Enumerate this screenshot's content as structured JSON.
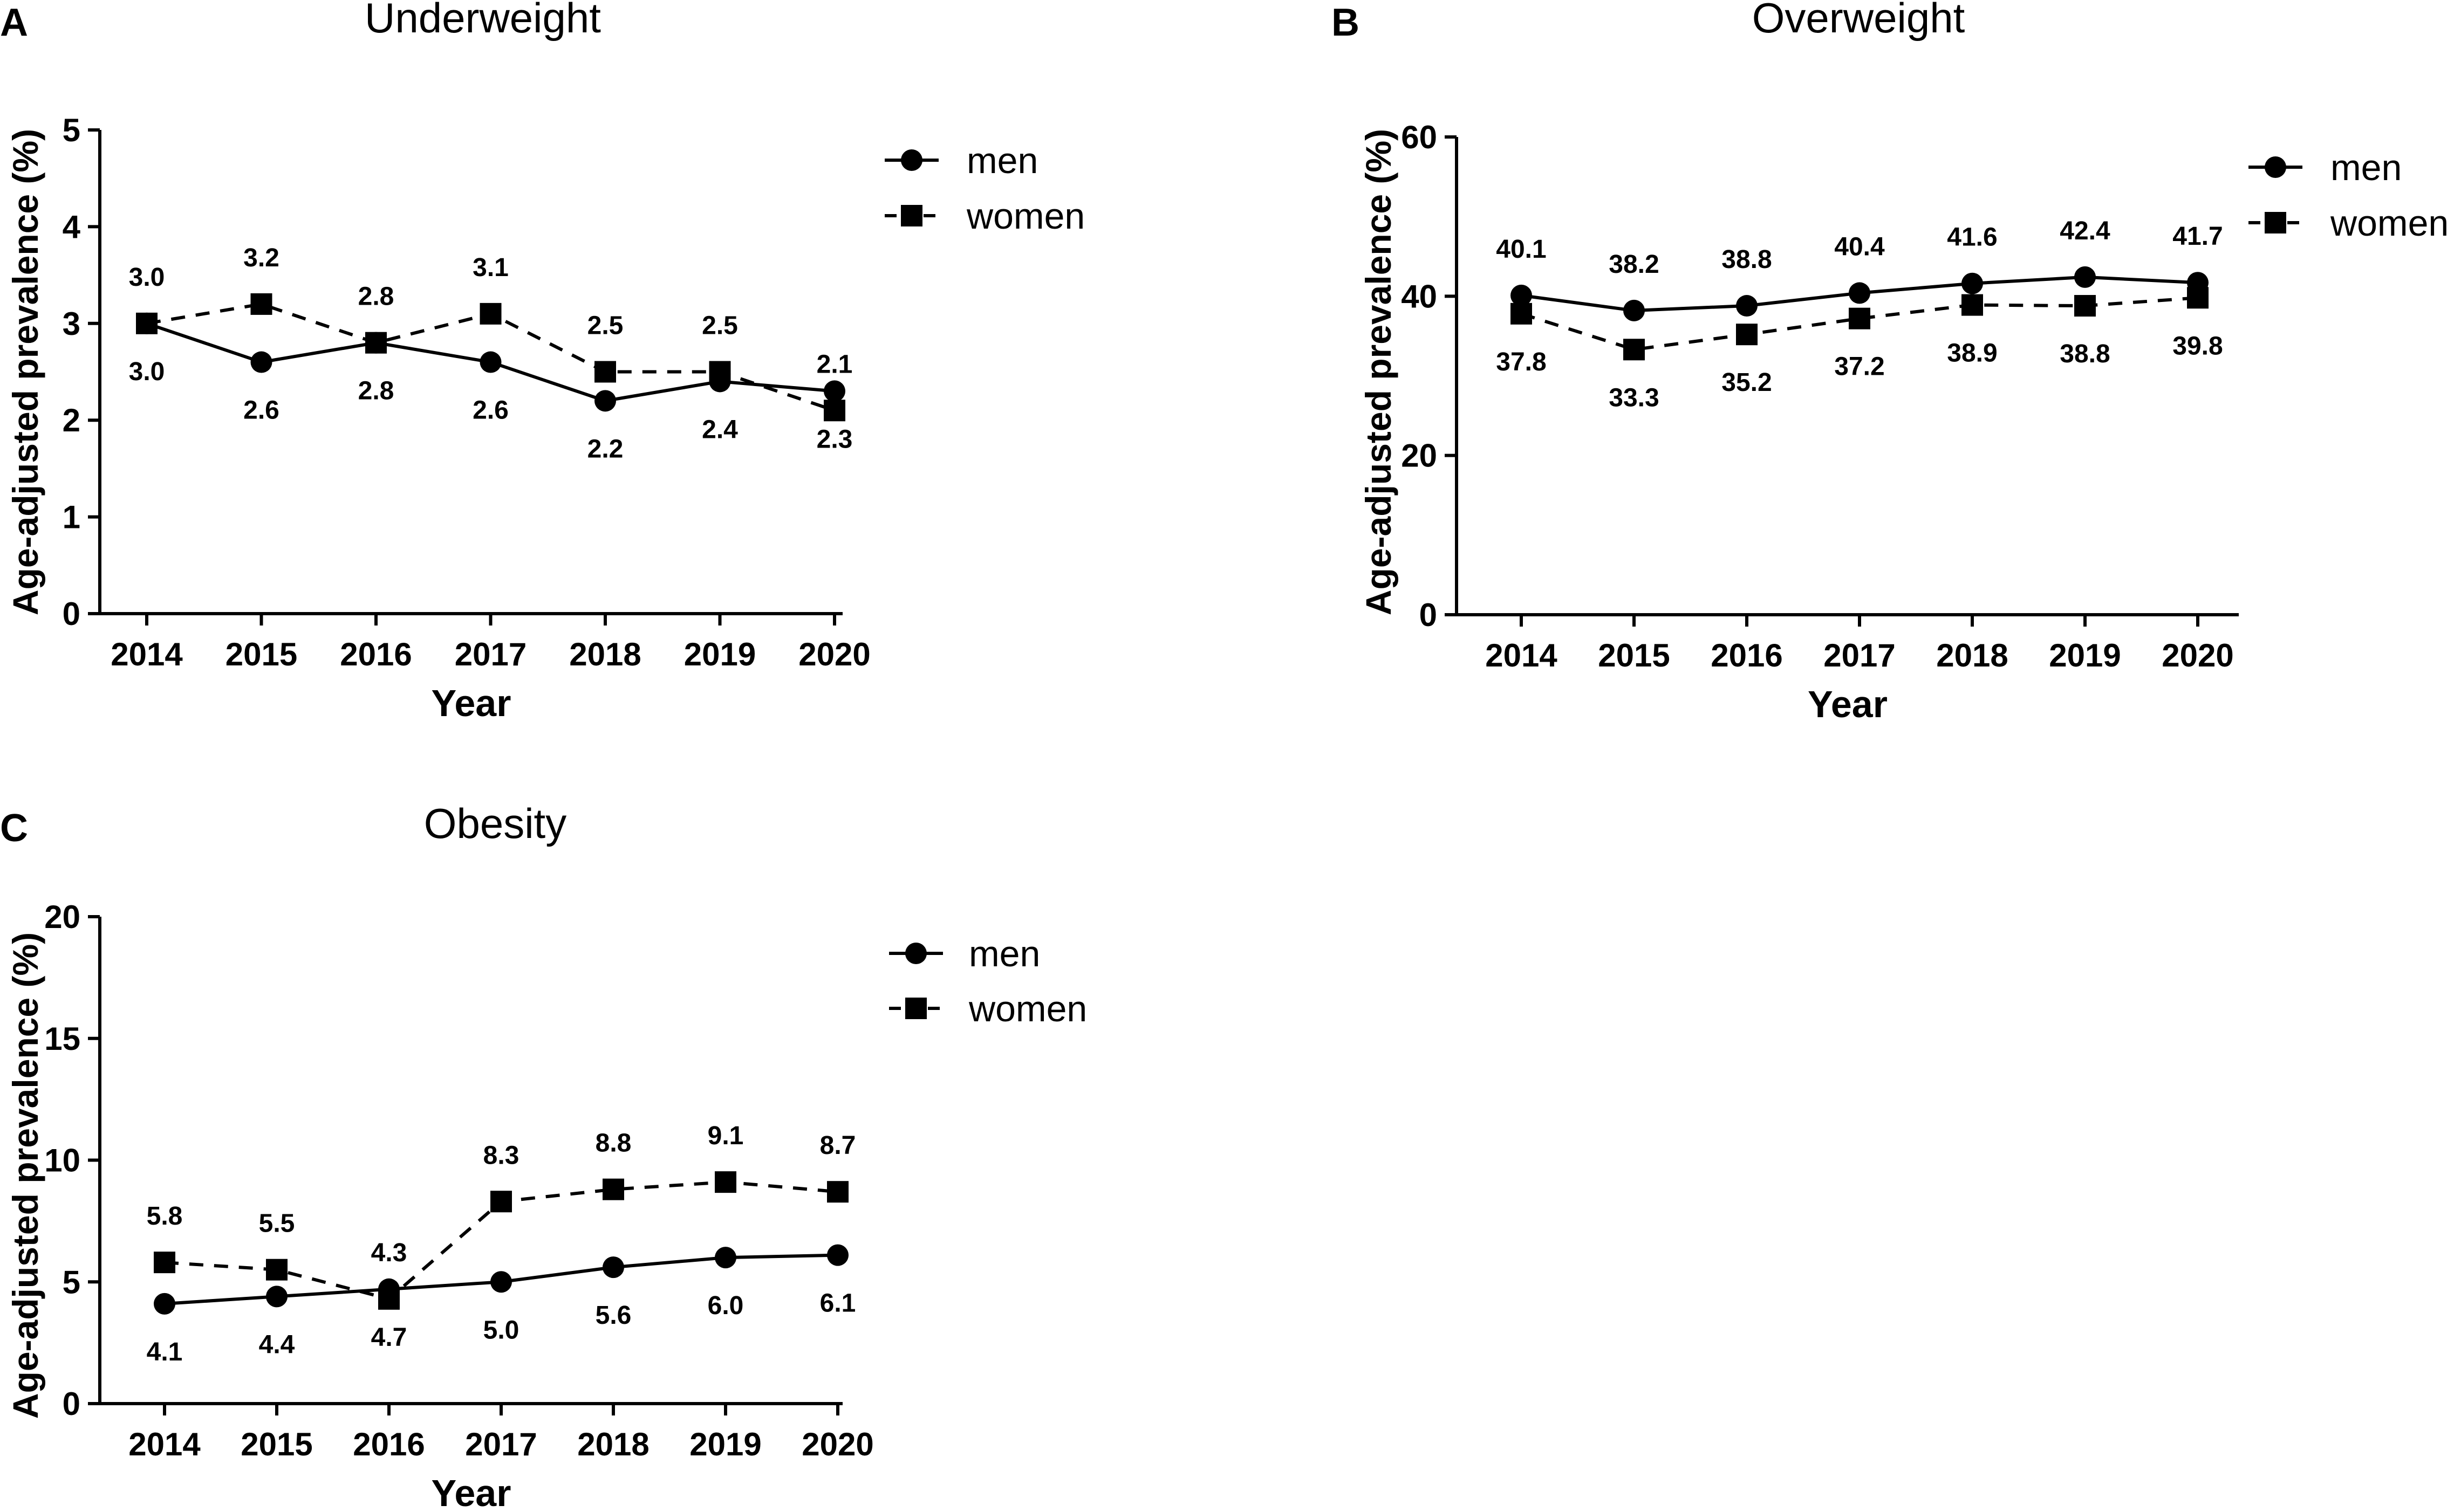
{
  "chart_data": [
    {
      "panel": "A",
      "type": "line",
      "title": "Underweight",
      "xlabel": "Year",
      "ylabel": "Age-adjusted prevalence (%)",
      "ylim": [
        0,
        5
      ],
      "yticks": [
        0,
        1,
        2,
        3,
        4,
        5
      ],
      "categories": [
        "2014",
        "2015",
        "2016",
        "2017",
        "2018",
        "2019",
        "2020"
      ],
      "series": [
        {
          "name": "men",
          "marker": "circle",
          "line": "solid",
          "values": [
            3.0,
            2.6,
            2.8,
            2.6,
            2.2,
            2.4,
            2.3
          ],
          "labels": [
            "3.0",
            "2.6",
            "2.8",
            "2.6",
            "2.2",
            "2.4",
            "2.3"
          ]
        },
        {
          "name": "women",
          "marker": "square",
          "line": "dashed",
          "values": [
            3.0,
            3.2,
            2.8,
            3.1,
            2.5,
            2.5,
            2.1
          ],
          "labels": [
            "3.0",
            "3.2",
            "2.8",
            "3.1",
            "2.5",
            "2.5",
            "2.1"
          ]
        }
      ],
      "legend": "top-right"
    },
    {
      "panel": "B",
      "type": "line",
      "title": "Overweight",
      "xlabel": "Year",
      "ylabel": "Age-adjusted prevalence (%)",
      "ylim": [
        0,
        60
      ],
      "yticks": [
        0,
        20,
        40,
        60
      ],
      "categories": [
        "2014",
        "2015",
        "2016",
        "2017",
        "2018",
        "2019",
        "2020"
      ],
      "series": [
        {
          "name": "men",
          "marker": "circle",
          "line": "solid",
          "values": [
            40.1,
            38.2,
            38.8,
            40.4,
            41.6,
            42.4,
            41.7
          ],
          "labels": [
            "40.1",
            "38.2",
            "38.8",
            "40.4",
            "41.6",
            "42.4",
            "41.7"
          ]
        },
        {
          "name": "women",
          "marker": "square",
          "line": "dashed",
          "values": [
            37.8,
            33.3,
            35.2,
            37.2,
            38.9,
            38.8,
            39.8
          ],
          "labels": [
            "37.8",
            "33.3",
            "35.2",
            "37.2",
            "38.9",
            "38.8",
            "39.8"
          ]
        }
      ],
      "legend": "top-right"
    },
    {
      "panel": "C",
      "type": "line",
      "title": "Obesity",
      "xlabel": "Year",
      "ylabel": "Age-adjusted prevalence (%)",
      "ylim": [
        0,
        20
      ],
      "yticks": [
        0,
        5,
        10,
        15,
        20
      ],
      "categories": [
        "2014",
        "2015",
        "2016",
        "2017",
        "2018",
        "2019",
        "2020"
      ],
      "series": [
        {
          "name": "men",
          "marker": "circle",
          "line": "solid",
          "values": [
            4.1,
            4.4,
            4.7,
            5.0,
            5.6,
            6.0,
            6.1
          ],
          "labels": [
            "4.1",
            "4.4",
            "4.7",
            "5.0",
            "5.6",
            "6.0",
            "6.1"
          ]
        },
        {
          "name": "women",
          "marker": "square",
          "line": "dashed",
          "values": [
            5.8,
            5.5,
            4.3,
            8.3,
            8.8,
            9.1,
            8.7
          ],
          "labels": [
            "5.8",
            "5.5",
            "4.3",
            "8.3",
            "8.8",
            "9.1",
            "8.7"
          ]
        }
      ],
      "legend": "top-right"
    }
  ]
}
